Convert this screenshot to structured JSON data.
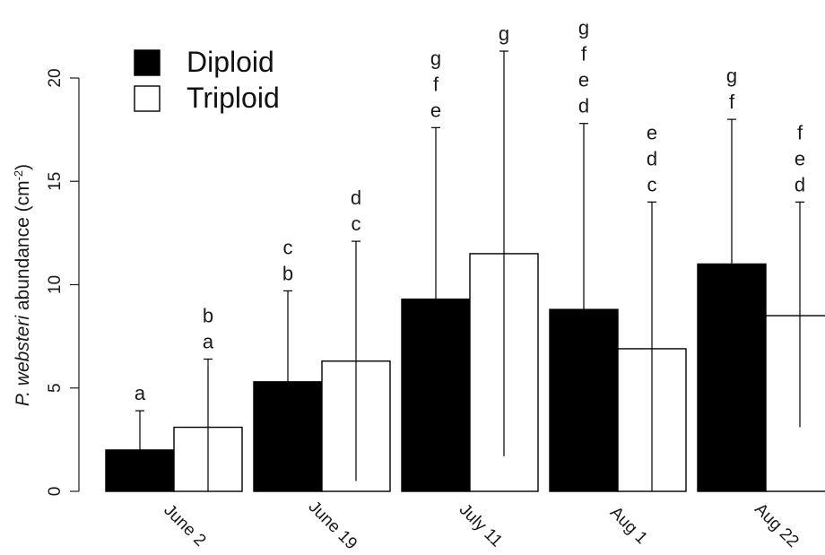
{
  "chart_data": {
    "type": "bar",
    "ylabel": {
      "italic": "P. websteri",
      "rest": " abundance (cm",
      "sup": "-2",
      "close": ")"
    },
    "ylim": [
      0,
      20
    ],
    "yticks": [
      0,
      5,
      10,
      15,
      20
    ],
    "categories": [
      "June 2",
      "June 19",
      "July 11",
      "Aug 1",
      "Aug 22"
    ],
    "series": [
      {
        "name": "Diploid",
        "color": "#000000",
        "values": [
          2.0,
          5.3,
          9.3,
          8.8,
          11.0
        ],
        "error_upper": [
          3.9,
          9.7,
          17.6,
          17.8,
          18.0
        ],
        "error_lower": [
          2.0,
          5.3,
          9.3,
          8.8,
          11.0
        ],
        "letters": [
          [
            "a"
          ],
          [
            "c",
            "b"
          ],
          [
            "g",
            "f",
            "e"
          ],
          [
            "g",
            "f",
            "e",
            "d"
          ],
          [
            "g",
            "f"
          ]
        ]
      },
      {
        "name": "Triploid",
        "color": "#ffffff",
        "values": [
          3.1,
          6.3,
          11.5,
          6.9,
          8.5
        ],
        "error_upper": [
          6.4,
          12.1,
          21.3,
          14.0,
          14.0
        ],
        "error_lower": [
          0,
          0.5,
          1.7,
          0,
          3.1
        ],
        "letters": [
          [
            "b",
            "a"
          ],
          [
            "d",
            "c"
          ],
          [
            "g"
          ],
          [
            "e",
            "d",
            "c"
          ],
          [
            "f",
            "e",
            "d"
          ]
        ]
      }
    ],
    "legend": {
      "position": "top-left"
    },
    "grid": false
  }
}
